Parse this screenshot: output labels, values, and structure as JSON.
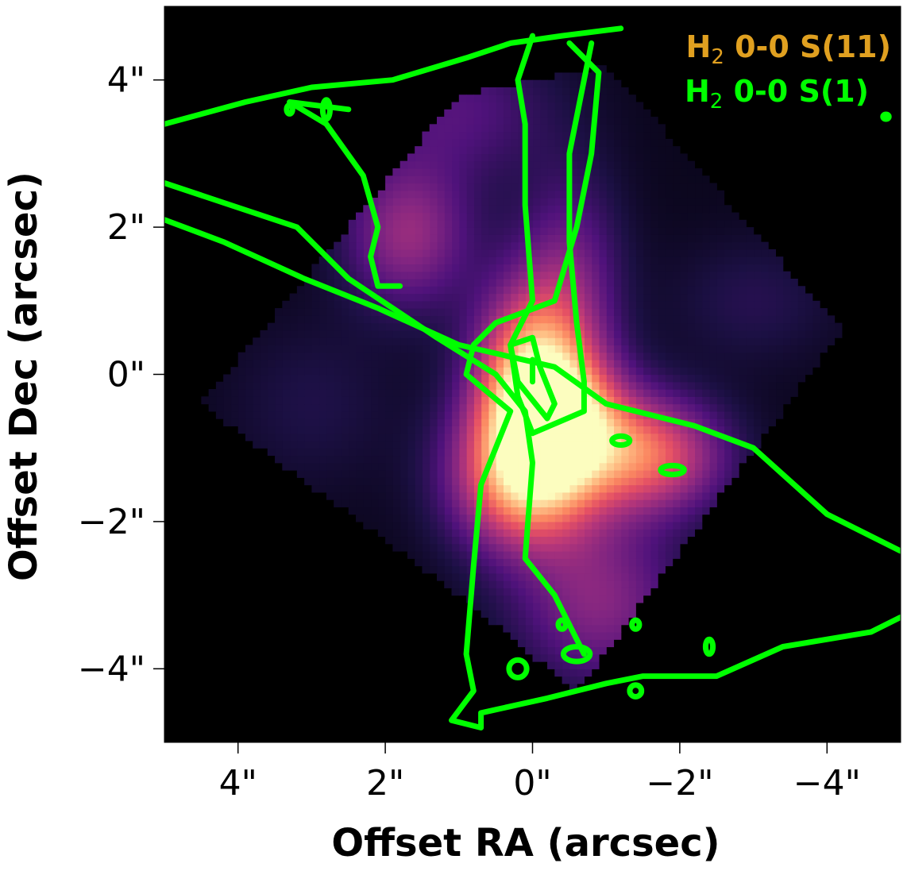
{
  "chart_data": {
    "type": "heatmap",
    "xlabel": "Offset RA (arcsec)",
    "ylabel": "Offset Dec (arcsec)",
    "xlim": [
      5,
      -5
    ],
    "ylim": [
      -5,
      5
    ],
    "x_ticks": [
      {
        "value": 4,
        "label": "4\""
      },
      {
        "value": 2,
        "label": "2\""
      },
      {
        "value": 0,
        "label": "0\""
      },
      {
        "value": -2,
        "label": "−2\""
      },
      {
        "value": -4,
        "label": "−4\""
      }
    ],
    "y_ticks": [
      {
        "value": 4,
        "label": "4\""
      },
      {
        "value": 2,
        "label": "2\""
      },
      {
        "value": 0,
        "label": "0\""
      },
      {
        "value": -2,
        "label": "−2\""
      },
      {
        "value": -4,
        "label": "−4\""
      }
    ],
    "colormap": "magma",
    "background_color": "#000000",
    "heatmap_series": {
      "name_main": "H",
      "name_sub": "2",
      "name_rest": " 0-0 S(11)",
      "color": "#e0a020"
    },
    "contour_series": {
      "name_main": "H",
      "name_sub": "2",
      "name_rest": " 0-0 S(1)",
      "color": "#00ff00"
    },
    "footprint": [
      [
        4.5,
        -0.4
      ],
      [
        1.0,
        3.8
      ],
      [
        -1.0,
        4.2
      ],
      [
        -4.2,
        0.6
      ],
      [
        -0.6,
        -4.3
      ],
      [
        1.0,
        -3.0
      ]
    ],
    "emission_blobs": [
      {
        "x": 0.0,
        "y": -0.1,
        "sx": 0.55,
        "sy": 0.9,
        "amp": 1.0
      },
      {
        "x": 0.1,
        "y": -1.4,
        "sx": 0.7,
        "sy": 0.7,
        "amp": 0.85
      },
      {
        "x": -1.6,
        "y": -1.1,
        "sx": 0.7,
        "sy": 0.55,
        "amp": 0.7
      },
      {
        "x": -0.5,
        "y": -0.6,
        "sx": 0.6,
        "sy": 0.6,
        "amp": 0.6
      },
      {
        "x": -0.9,
        "y": -3.1,
        "sx": 0.8,
        "sy": 0.8,
        "amp": 0.4
      },
      {
        "x": 1.7,
        "y": 1.9,
        "sx": 0.6,
        "sy": 0.7,
        "amp": 0.45
      },
      {
        "x": 1.0,
        "y": 3.6,
        "sx": 0.9,
        "sy": 0.7,
        "amp": 0.25
      },
      {
        "x": -0.5,
        "y": 1.4,
        "sx": 0.5,
        "sy": 1.0,
        "amp": 0.3
      },
      {
        "x": -3.0,
        "y": 1.0,
        "sx": 0.8,
        "sy": 0.6,
        "amp": 0.12
      },
      {
        "x": 3.0,
        "y": -0.4,
        "sx": 0.8,
        "sy": 0.8,
        "amp": 0.1
      }
    ],
    "contours": [
      [
        [
          -1.2,
          4.7
        ],
        [
          -0.4,
          4.6
        ],
        [
          0.3,
          4.5
        ],
        [
          0.9,
          4.3
        ],
        [
          1.9,
          4.0
        ],
        [
          3.0,
          3.9
        ],
        [
          3.9,
          3.7
        ],
        [
          5.0,
          3.4
        ]
      ],
      [
        [
          -0.5,
          4.5
        ],
        [
          -0.9,
          4.1
        ],
        [
          -0.8,
          3.0
        ],
        [
          -0.6,
          2.0
        ],
        [
          -0.3,
          1.0
        ],
        [
          0.5,
          0.7
        ],
        [
          0.8,
          0.4
        ],
        [
          0.9,
          0.0
        ],
        [
          0.3,
          -0.5
        ],
        [
          0.7,
          -1.5
        ],
        [
          0.8,
          -2.6
        ],
        [
          0.9,
          -3.8
        ],
        [
          0.8,
          -4.3
        ],
        [
          1.1,
          -4.7
        ],
        [
          0.7,
          -4.8
        ],
        [
          0.7,
          -4.6
        ],
        [
          -0.2,
          -4.4
        ],
        [
          -1.0,
          -4.2
        ],
        [
          -1.5,
          -4.1
        ],
        [
          -2.5,
          -4.1
        ],
        [
          -3.4,
          -3.7
        ],
        [
          -4.6,
          -3.5
        ],
        [
          -5.0,
          -3.3
        ]
      ],
      [
        [
          0.0,
          4.6
        ],
        [
          0.2,
          4.0
        ],
        [
          0.1,
          3.4
        ],
        [
          0.1,
          2.3
        ],
        [
          0.0,
          1.0
        ],
        [
          0.3,
          0.4
        ],
        [
          0.2,
          -0.3
        ],
        [
          0.0,
          -0.8
        ],
        [
          -0.7,
          -0.5
        ],
        [
          -0.7,
          -0.1
        ],
        [
          -0.6,
          0.7
        ],
        [
          -0.5,
          1.8
        ],
        [
          -0.5,
          3.0
        ],
        [
          -0.7,
          4.0
        ],
        [
          -0.8,
          4.5
        ]
      ],
      [
        [
          5.0,
          2.6
        ],
        [
          4.1,
          2.3
        ],
        [
          3.2,
          2.0
        ],
        [
          2.5,
          1.3
        ],
        [
          1.3,
          0.5
        ],
        [
          0.5,
          0.0
        ],
        [
          0.1,
          -0.5
        ],
        [
          0.0,
          -1.2
        ],
        [
          0.1,
          -2.5
        ],
        [
          -0.3,
          -3.0
        ],
        [
          -0.7,
          -3.8
        ]
      ],
      [
        [
          5.0,
          2.1
        ],
        [
          4.2,
          1.8
        ],
        [
          3.1,
          1.3
        ],
        [
          2.1,
          0.9
        ],
        [
          1.0,
          0.4
        ],
        [
          -0.3,
          0.1
        ],
        [
          -1.0,
          -0.4
        ],
        [
          -2.2,
          -0.7
        ],
        [
          -3.0,
          -1.0
        ],
        [
          -4.0,
          -1.9
        ],
        [
          -5.0,
          -2.4
        ]
      ],
      [
        [
          0.3,
          0.4
        ],
        [
          0.0,
          0.5
        ],
        [
          -0.1,
          0.1
        ],
        [
          -0.3,
          -0.4
        ],
        [
          -0.2,
          -0.6
        ],
        [
          0.2,
          -0.1
        ],
        [
          0.3,
          0.4
        ]
      ],
      [
        [
          0.0,
          0.2
        ],
        [
          0.0,
          -0.1
        ]
      ],
      [
        [
          2.5,
          3.6
        ],
        [
          3.3,
          3.7
        ],
        [
          2.8,
          3.4
        ],
        [
          2.3,
          2.7
        ],
        [
          2.1,
          2.0
        ],
        [
          2.2,
          1.6
        ],
        [
          2.1,
          1.2
        ],
        [
          1.8,
          1.2
        ]
      ]
    ],
    "small_loops": [
      {
        "x": -1.2,
        "y": -0.9,
        "rx": 0.12,
        "ry": 0.06
      },
      {
        "x": -1.9,
        "y": -1.3,
        "rx": 0.16,
        "ry": 0.06
      },
      {
        "x": 0.2,
        "y": -4.0,
        "rx": 0.12,
        "ry": 0.12
      },
      {
        "x": -0.6,
        "y": -3.8,
        "rx": 0.18,
        "ry": 0.1
      },
      {
        "x": -0.4,
        "y": -3.4,
        "rx": 0.05,
        "ry": 0.06
      },
      {
        "x": -1.4,
        "y": -3.4,
        "rx": 0.05,
        "ry": 0.06
      },
      {
        "x": -2.4,
        "y": -3.7,
        "rx": 0.05,
        "ry": 0.1
      },
      {
        "x": -1.4,
        "y": -4.3,
        "rx": 0.08,
        "ry": 0.08
      },
      {
        "x": 2.8,
        "y": 3.6,
        "rx": 0.05,
        "ry": 0.13
      },
      {
        "x": 3.3,
        "y": 3.6,
        "rx": 0.04,
        "ry": 0.06
      },
      {
        "x": -4.8,
        "y": 3.5,
        "rx": 0.04,
        "ry": 0.03
      }
    ]
  }
}
